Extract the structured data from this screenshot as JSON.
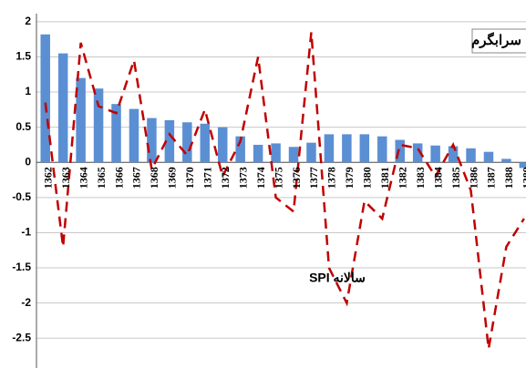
{
  "chart_data": {
    "type": "bar-line",
    "title": "سرابگرم",
    "annotation": "SPI سالانه",
    "categories": [
      "1362",
      "1363",
      "1364",
      "1365",
      "1366",
      "1367",
      "1368",
      "1369",
      "1370",
      "1371",
      "1372",
      "1373",
      "1374",
      "1375",
      "1376",
      "1377",
      "1378",
      "1379",
      "1380",
      "1381",
      "1382",
      "1383",
      "1384",
      "1385",
      "1386",
      "1387",
      "1388",
      "1389"
    ],
    "series": [
      {
        "kind": "bar",
        "color": "#5b8fd4",
        "values": [
          1.82,
          1.55,
          1.2,
          1.05,
          0.83,
          0.76,
          0.63,
          0.6,
          0.57,
          0.55,
          0.5,
          0.37,
          0.25,
          0.27,
          0.22,
          0.28,
          0.4,
          0.4,
          0.4,
          0.37,
          0.32,
          0.27,
          0.24,
          0.23,
          0.2,
          0.15,
          0.05,
          -0.08
        ]
      },
      {
        "kind": "line",
        "color": "#c00000",
        "values": [
          0.85,
          -1.2,
          1.7,
          0.8,
          0.7,
          1.45,
          -0.1,
          0.4,
          0.1,
          0.75,
          -0.2,
          0.3,
          1.5,
          -0.5,
          -0.7,
          1.85,
          -1.5,
          -2.0,
          -0.55,
          -0.8,
          0.25,
          0.2,
          -0.2,
          0.25,
          -0.4,
          -2.65,
          -1.2,
          -0.8
        ]
      }
    ],
    "ylim": [
      -2.95,
      2.05
    ],
    "yticks": [
      2,
      1.5,
      1,
      0.5,
      0,
      -0.5,
      -1,
      -1.5,
      -2,
      -2.5
    ],
    "grid": true
  }
}
